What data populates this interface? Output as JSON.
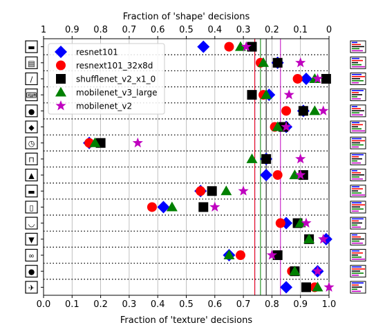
{
  "chart_data": {
    "type": "scatter",
    "xlabel_bottom": "Fraction of 'texture' decisions",
    "xlabel_top": "Fraction of 'shape' decisions",
    "xlim": [
      0.0,
      1.0
    ],
    "x_ticks_bottom": [
      "0.0",
      "0.1",
      "0.2",
      "0.3",
      "0.4",
      "0.5",
      "0.6",
      "0.7",
      "0.8",
      "0.9",
      "1.0"
    ],
    "x_ticks_top": [
      "1",
      "0.9",
      "0.8",
      "0.7",
      "0.6",
      "0.5",
      "0.4",
      "0.3",
      "0.2",
      "0.1",
      "0"
    ],
    "categories": [
      "truck",
      "oven",
      "knife",
      "keyboard",
      "elephant",
      "dog",
      "clock",
      "chair",
      "cat",
      "car",
      "bottle",
      "boat",
      "bird",
      "bicycle",
      "bear",
      "airplane"
    ],
    "category_icons": [
      "truck-icon",
      "oven-icon",
      "knife-icon",
      "keyboard-icon",
      "elephant-icon",
      "dog-icon",
      "clock-icon",
      "chair-icon",
      "cat-icon",
      "car-icon",
      "bottle-icon",
      "boat-icon",
      "bird-icon",
      "bicycle-icon",
      "bear-icon",
      "airplane-icon"
    ],
    "grid_x": true,
    "legend_position": "top-left",
    "series": [
      {
        "name": "resnet101",
        "marker": "diamond",
        "color": "#0000ff",
        "values": [
          0.56,
          0.82,
          0.92,
          0.79,
          0.91,
          0.85,
          0.16,
          0.78,
          0.78,
          0.55,
          0.42,
          0.85,
          0.99,
          0.65,
          0.96,
          0.85
        ],
        "mean": 0.74
      },
      {
        "name": "resnext101_32x8d",
        "marker": "circle",
        "color": "#ff0000",
        "values": [
          0.65,
          0.76,
          0.89,
          0.77,
          0.85,
          0.81,
          0.16,
          0.78,
          0.82,
          0.55,
          0.38,
          0.83,
          0.93,
          0.69,
          0.87,
          0.95
        ],
        "mean": 0.74
      },
      {
        "name": "shufflenet_v2_x1_0",
        "marker": "square",
        "color": "#000000",
        "values": [
          0.73,
          0.82,
          0.99,
          0.73,
          0.91,
          0.84,
          0.2,
          0.78,
          0.91,
          0.59,
          0.56,
          0.89,
          0.93,
          0.82,
          0.88,
          0.92
        ],
        "mean": 0.78
      },
      {
        "name": "mobilenet_v3_large",
        "marker": "triangle",
        "color": "#008000",
        "values": [
          0.69,
          0.77,
          0.95,
          0.78,
          0.95,
          0.82,
          0.18,
          0.73,
          0.88,
          0.64,
          0.45,
          0.9,
          0.93,
          0.65,
          0.88,
          0.96
        ],
        "mean": 0.76
      },
      {
        "name": "mobilenet_v2",
        "marker": "star",
        "color": "#bf00bf",
        "values": [
          0.71,
          0.9,
          0.96,
          0.86,
          0.98,
          0.85,
          0.33,
          0.9,
          0.9,
          0.7,
          0.6,
          0.92,
          0.98,
          0.8,
          0.96,
          1.0
        ],
        "mean": 0.83
      }
    ]
  }
}
